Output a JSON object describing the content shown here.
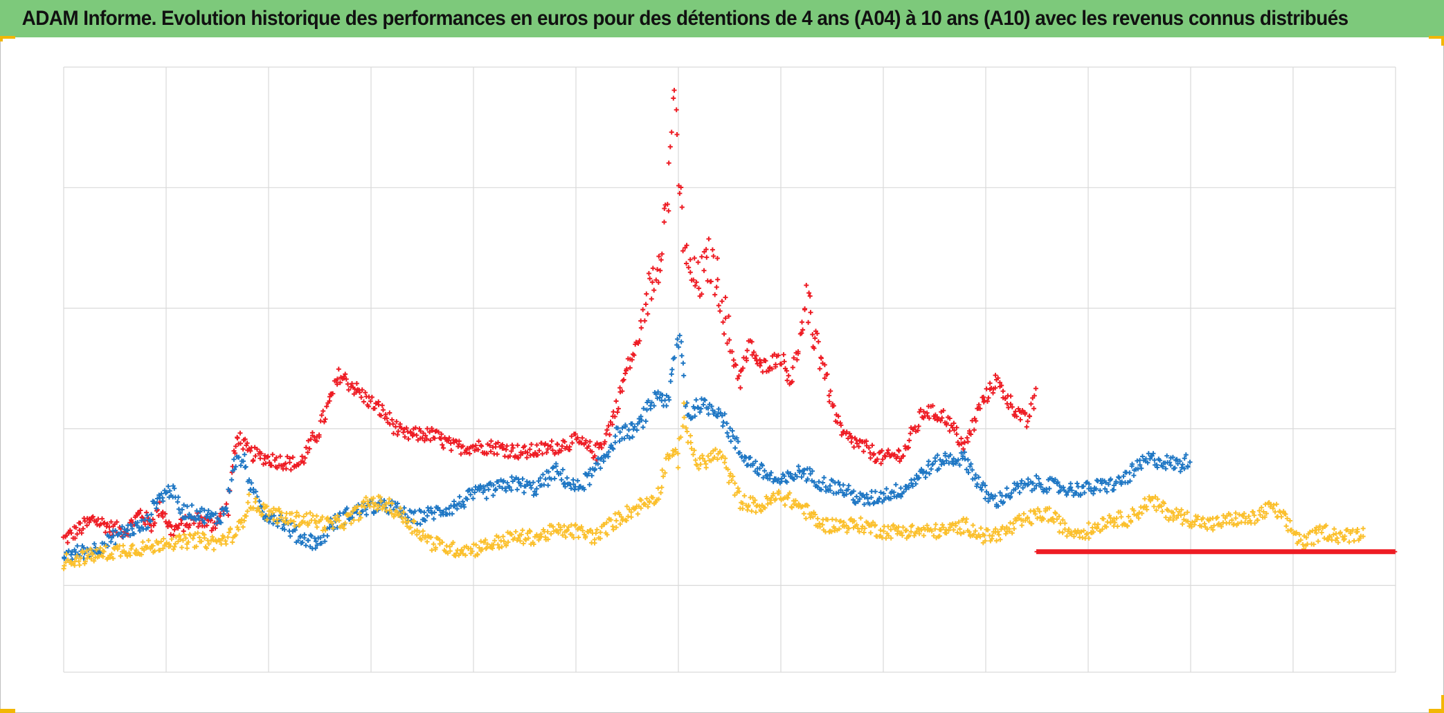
{
  "title": "ADAM Informe. Evolution historique des performances en euros pour des détentions de 4 ans (A04) à 10 ans (A10) avec les revenus connus distribués",
  "colors": {
    "title_bg": "#7dc97b",
    "corner_accent": "#f2b705",
    "grid": "#d9d9d9"
  },
  "chart_data": {
    "type": "scatter",
    "marker": "plus",
    "title": "ADAM Informe. Evolution historique des performances en euros pour des détentions de 4 ans (A04) à 10 ans (A10) avec les revenus connus distribués",
    "xlabel": "",
    "ylabel": "",
    "xlim": [
      0,
      13
    ],
    "ylim": [
      -0.72,
      4.3
    ],
    "x_gridlines": 13,
    "y_gridlines": [
      -0.72,
      0,
      1.3,
      2.3,
      3.3,
      4.3
    ],
    "grid": true,
    "legend": "none",
    "series": [
      {
        "name": "series-red",
        "color": "#ee1c24",
        "x": [
          0.0,
          0.3,
          0.45,
          0.6,
          0.75,
          0.85,
          0.95,
          1.05,
          1.15,
          1.3,
          1.45,
          1.6,
          1.65,
          1.7,
          1.8,
          2.0,
          2.3,
          2.5,
          2.7,
          2.95,
          3.1,
          3.3,
          3.6,
          3.8,
          4.0,
          4.2,
          4.5,
          4.8,
          5.0,
          5.2,
          5.35,
          5.5,
          5.6,
          5.7,
          5.8,
          5.9,
          5.95,
          6.0,
          6.05,
          6.1,
          6.2,
          6.3,
          6.4,
          6.5,
          6.6,
          6.7,
          6.8,
          7.0,
          7.1,
          7.25,
          7.4,
          7.5,
          7.6,
          7.8,
          8.0,
          8.2,
          8.4,
          8.6,
          8.8,
          8.95,
          9.1,
          9.25,
          9.4,
          9.5
        ],
        "y": [
          0.38,
          0.55,
          0.48,
          0.45,
          0.6,
          0.5,
          0.65,
          0.45,
          0.5,
          0.55,
          0.5,
          0.65,
          1.0,
          1.25,
          1.1,
          1.05,
          1.0,
          1.3,
          1.75,
          1.55,
          1.45,
          1.25,
          1.25,
          1.15,
          1.15,
          1.15,
          1.1,
          1.15,
          1.2,
          1.1,
          1.35,
          1.8,
          2.0,
          2.4,
          2.7,
          3.2,
          4.1,
          3.4,
          2.9,
          2.6,
          2.5,
          2.7,
          2.5,
          2.0,
          1.7,
          2.0,
          1.8,
          1.9,
          1.7,
          2.3,
          1.9,
          1.5,
          1.25,
          1.15,
          1.05,
          1.1,
          1.45,
          1.4,
          1.15,
          1.5,
          1.7,
          1.5,
          1.35,
          1.6
        ]
      },
      {
        "name": "series-blue",
        "color": "#1f77c4",
        "x": [
          0.0,
          0.3,
          0.6,
          0.8,
          0.9,
          1.05,
          1.15,
          1.3,
          1.5,
          1.6,
          1.65,
          1.75,
          1.85,
          1.95,
          2.1,
          2.3,
          2.5,
          2.6,
          2.8,
          3.0,
          3.2,
          3.4,
          3.6,
          3.8,
          4.0,
          4.2,
          4.4,
          4.6,
          4.8,
          5.0,
          5.2,
          5.4,
          5.6,
          5.8,
          5.9,
          6.0,
          6.1,
          6.2,
          6.4,
          6.6,
          6.8,
          7.0,
          7.2,
          7.4,
          7.6,
          7.8,
          8.0,
          8.2,
          8.4,
          8.6,
          8.8,
          9.0,
          9.1,
          9.3,
          9.5,
          9.8,
          10.0,
          10.3,
          10.6,
          10.9,
          11.0
        ],
        "y": [
          0.25,
          0.3,
          0.45,
          0.5,
          0.7,
          0.8,
          0.62,
          0.6,
          0.55,
          0.65,
          1.0,
          1.05,
          0.75,
          0.6,
          0.55,
          0.4,
          0.35,
          0.5,
          0.6,
          0.65,
          0.65,
          0.55,
          0.6,
          0.65,
          0.75,
          0.8,
          0.85,
          0.8,
          0.95,
          0.8,
          0.95,
          1.25,
          1.3,
          1.6,
          1.5,
          2.1,
          1.4,
          1.5,
          1.45,
          1.1,
          0.95,
          0.85,
          0.95,
          0.85,
          0.8,
          0.7,
          0.75,
          0.8,
          0.95,
          1.05,
          1.05,
          0.75,
          0.7,
          0.8,
          0.85,
          0.8,
          0.8,
          0.85,
          1.05,
          1.0,
          1.05
        ]
      },
      {
        "name": "series-yellow",
        "color": "#fbc02d",
        "x": [
          0.0,
          0.3,
          0.6,
          0.9,
          1.0,
          1.1,
          1.3,
          1.5,
          1.7,
          1.75,
          1.8,
          2.0,
          2.2,
          2.4,
          2.6,
          2.8,
          3.0,
          3.2,
          3.4,
          3.6,
          3.8,
          4.0,
          4.2,
          4.4,
          4.6,
          4.8,
          5.0,
          5.2,
          5.4,
          5.6,
          5.8,
          5.9,
          6.0,
          6.05,
          6.1,
          6.2,
          6.4,
          6.6,
          6.8,
          7.0,
          7.2,
          7.4,
          7.6,
          7.8,
          8.0,
          8.2,
          8.4,
          8.6,
          8.8,
          9.0,
          9.2,
          9.4,
          9.6,
          9.8,
          10.0,
          10.2,
          10.4,
          10.6,
          10.8,
          11.0,
          11.2,
          11.4,
          11.6,
          11.8,
          11.9,
          12.1,
          12.3,
          12.5,
          12.7
        ],
        "y": [
          0.2,
          0.25,
          0.3,
          0.32,
          0.38,
          0.35,
          0.38,
          0.35,
          0.45,
          0.55,
          0.7,
          0.6,
          0.55,
          0.55,
          0.5,
          0.55,
          0.7,
          0.65,
          0.5,
          0.35,
          0.3,
          0.3,
          0.35,
          0.4,
          0.4,
          0.45,
          0.45,
          0.4,
          0.55,
          0.65,
          0.75,
          1.1,
          1.05,
          1.5,
          1.2,
          1.0,
          1.1,
          0.7,
          0.65,
          0.75,
          0.65,
          0.5,
          0.5,
          0.5,
          0.45,
          0.45,
          0.45,
          0.45,
          0.5,
          0.4,
          0.45,
          0.55,
          0.6,
          0.45,
          0.45,
          0.55,
          0.55,
          0.7,
          0.6,
          0.55,
          0.5,
          0.55,
          0.55,
          0.65,
          0.55,
          0.35,
          0.45,
          0.4,
          0.45
        ]
      },
      {
        "name": "series-red-flat",
        "color": "#ee1c24",
        "x": [
          9.5,
          13.0
        ],
        "y": [
          0.28,
          0.28
        ]
      }
    ]
  }
}
